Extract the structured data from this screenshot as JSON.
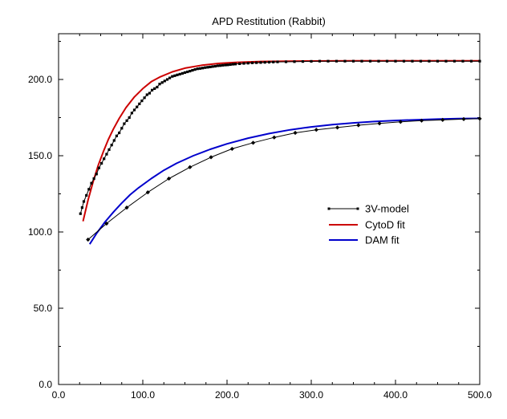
{
  "chart_data": {
    "type": "line",
    "title": "APD Restitution (Rabbit)",
    "xlabel": "",
    "ylabel": "",
    "xlim": [
      0,
      500
    ],
    "ylim": [
      0,
      230
    ],
    "x_ticks": [
      "0.0",
      "100.0",
      "200.0",
      "300.0",
      "400.0",
      "500.0"
    ],
    "y_ticks": [
      "0.0",
      "50.0",
      "100.0",
      "150.0",
      "200.0"
    ],
    "legend_position": "center-right",
    "series": [
      {
        "name": "3V-model",
        "style": "black-line-square-markers",
        "color": "#000000",
        "points": [
          [
            26,
            112
          ],
          [
            28,
            116
          ],
          [
            30,
            120
          ],
          [
            33,
            124
          ],
          [
            36,
            128
          ],
          [
            39,
            132
          ],
          [
            42,
            135
          ],
          [
            45,
            138
          ],
          [
            48,
            142
          ],
          [
            51,
            145
          ],
          [
            54,
            148
          ],
          [
            57,
            151
          ],
          [
            60,
            154
          ],
          [
            63,
            157
          ],
          [
            66,
            160
          ],
          [
            69,
            163
          ],
          [
            72,
            165
          ],
          [
            75,
            168
          ],
          [
            78,
            171
          ],
          [
            81,
            173
          ],
          [
            84,
            175
          ],
          [
            87,
            178
          ],
          [
            90,
            180
          ],
          [
            93,
            182
          ],
          [
            96,
            184
          ],
          [
            99,
            186
          ],
          [
            102,
            188
          ],
          [
            105,
            190
          ],
          [
            108,
            191
          ],
          [
            111,
            193
          ],
          [
            114,
            194
          ],
          [
            117,
            195
          ],
          [
            120,
            197
          ],
          [
            123,
            198
          ],
          [
            126,
            199
          ],
          [
            129,
            200
          ],
          [
            132,
            201
          ],
          [
            135,
            202
          ],
          [
            138,
            202.5
          ],
          [
            141,
            203
          ],
          [
            144,
            203.5
          ],
          [
            147,
            204
          ],
          [
            150,
            204.5
          ],
          [
            153,
            205
          ],
          [
            156,
            205.5
          ],
          [
            159,
            206
          ],
          [
            162,
            206.5
          ],
          [
            165,
            207
          ],
          [
            168,
            207.2
          ],
          [
            171,
            207.5
          ],
          [
            174,
            207.8
          ],
          [
            177,
            208
          ],
          [
            180,
            208.2
          ],
          [
            183,
            208.5
          ],
          [
            186,
            208.7
          ],
          [
            189,
            209
          ],
          [
            192,
            209.1
          ],
          [
            195,
            209.3
          ],
          [
            198,
            209.5
          ],
          [
            201,
            209.6
          ],
          [
            204,
            209.8
          ],
          [
            207,
            210
          ],
          [
            210,
            210.1
          ],
          [
            215,
            210.3
          ],
          [
            220,
            210.5
          ],
          [
            225,
            210.7
          ],
          [
            230,
            210.9
          ],
          [
            235,
            211
          ],
          [
            240,
            211.1
          ],
          [
            245,
            211.2
          ],
          [
            250,
            211.3
          ],
          [
            255,
            211.4
          ],
          [
            260,
            211.5
          ],
          [
            270,
            211.6
          ],
          [
            280,
            211.7
          ],
          [
            290,
            211.8
          ],
          [
            300,
            211.9
          ],
          [
            310,
            212
          ],
          [
            320,
            212
          ],
          [
            330,
            212
          ],
          [
            340,
            212
          ],
          [
            350,
            212
          ],
          [
            360,
            212
          ],
          [
            370,
            212
          ],
          [
            380,
            212
          ],
          [
            390,
            212
          ],
          [
            400,
            212
          ],
          [
            410,
            212
          ],
          [
            420,
            212
          ],
          [
            430,
            212
          ],
          [
            440,
            212
          ],
          [
            450,
            212
          ],
          [
            460,
            212
          ],
          [
            470,
            212
          ],
          [
            480,
            212
          ],
          [
            490,
            212
          ],
          [
            500,
            212
          ]
        ]
      },
      {
        "name": "3V-model",
        "style": "black-line-diamond-markers",
        "color": "#000000",
        "points": [
          [
            35,
            95
          ],
          [
            57,
            105.5
          ],
          [
            81,
            116
          ],
          [
            106,
            126
          ],
          [
            131,
            135
          ],
          [
            156,
            142.5
          ],
          [
            181,
            149
          ],
          [
            206,
            154.5
          ],
          [
            231,
            158.5
          ],
          [
            256,
            162
          ],
          [
            281,
            165
          ],
          [
            306,
            167
          ],
          [
            331,
            168.5
          ],
          [
            356,
            170
          ],
          [
            381,
            171.2
          ],
          [
            406,
            172.2
          ],
          [
            431,
            173
          ],
          [
            456,
            173.5
          ],
          [
            481,
            174
          ],
          [
            500,
            174.3
          ]
        ]
      },
      {
        "name": "CytoD fit",
        "style": "red-line",
        "color": "#cc0000",
        "points": [
          [
            29,
            107
          ],
          [
            35,
            121
          ],
          [
            41,
            133
          ],
          [
            47,
            143.5
          ],
          [
            53,
            152.5
          ],
          [
            59,
            160.5
          ],
          [
            65,
            167.5
          ],
          [
            72,
            174.5
          ],
          [
            80,
            181.5
          ],
          [
            90,
            188.5
          ],
          [
            100,
            194
          ],
          [
            110,
            198.5
          ],
          [
            120,
            201.5
          ],
          [
            135,
            205
          ],
          [
            150,
            207.4
          ],
          [
            170,
            209.3
          ],
          [
            190,
            210.5
          ],
          [
            210,
            211.2
          ],
          [
            240,
            211.8
          ],
          [
            270,
            212
          ],
          [
            300,
            212.1
          ],
          [
            350,
            212.2
          ],
          [
            400,
            212.2
          ],
          [
            450,
            212.2
          ],
          [
            500,
            212.2
          ]
        ]
      },
      {
        "name": "DAM fit",
        "style": "blue-line",
        "color": "#0000cc",
        "points": [
          [
            37,
            92
          ],
          [
            45,
            99
          ],
          [
            55,
            106.5
          ],
          [
            65,
            113
          ],
          [
            75,
            119
          ],
          [
            85,
            124.5
          ],
          [
            95,
            129
          ],
          [
            110,
            135
          ],
          [
            125,
            140.5
          ],
          [
            140,
            145
          ],
          [
            160,
            150
          ],
          [
            180,
            154.2
          ],
          [
            200,
            157.8
          ],
          [
            225,
            161.5
          ],
          [
            250,
            164.5
          ],
          [
            275,
            167
          ],
          [
            300,
            168.9
          ],
          [
            325,
            170.4
          ],
          [
            350,
            171.5
          ],
          [
            375,
            172.4
          ],
          [
            400,
            173.1
          ],
          [
            425,
            173.6
          ],
          [
            450,
            174
          ],
          [
            475,
            174.3
          ],
          [
            500,
            174.5
          ]
        ]
      }
    ]
  }
}
